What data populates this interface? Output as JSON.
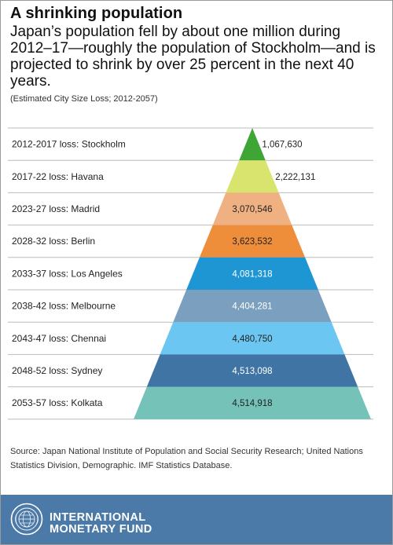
{
  "header": {
    "title": "A shrinking population",
    "subtitle": "Japan’s population fell by about one million during 2012–17—roughly the population of Stockholm—and is projected to shrink by over 25 percent in the next 40 years.",
    "note": "(Estimated City Size Loss; 2012-2057)"
  },
  "chart_data": {
    "type": "bar",
    "categories": [
      "2012-2017 loss: Stockholm",
      "2017-22 loss: Havana",
      "2023-27 loss: Madrid",
      "2028-32 loss: Berlin",
      "2033-37 loss: Los Angeles",
      "2038-42 loss: Melbourne",
      "2043-47 loss: Chennai",
      "2048-52 loss: Sydney",
      "2053-57 loss: Kolkata"
    ],
    "values": [
      1067630,
      2222131,
      3070546,
      3623532,
      4081318,
      4404281,
      4480750,
      4513098,
      4514918
    ],
    "value_labels": [
      "1,067,630",
      "2,222,131",
      "3,070,546",
      "3,623,532",
      "4,081,318",
      "4,404,281",
      "4,480,750",
      "4,513,098",
      "4,514,918"
    ],
    "colors": [
      "#3fa535",
      "#d8e46e",
      "#f0b182",
      "#ee8e3a",
      "#1f96d4",
      "#7a9fbf",
      "#6cc6f2",
      "#3f74a4",
      "#74c2b8"
    ],
    "label_colors": [
      "#222222",
      "#222222",
      "#222222",
      "#222222",
      "#ffffff",
      "#ffffff",
      "#222222",
      "#ffffff",
      "#222222"
    ],
    "grid_color": "#bbbbbb"
  },
  "footer": {
    "source": "Source: Japan National Institute of Population and Social Security Research; United Nations Statistics Division, Demographic. IMF Statistics Database.",
    "org_line1": "INTERNATIONAL",
    "org_line2": "MONETARY FUND",
    "background": "#4c7aa8"
  }
}
